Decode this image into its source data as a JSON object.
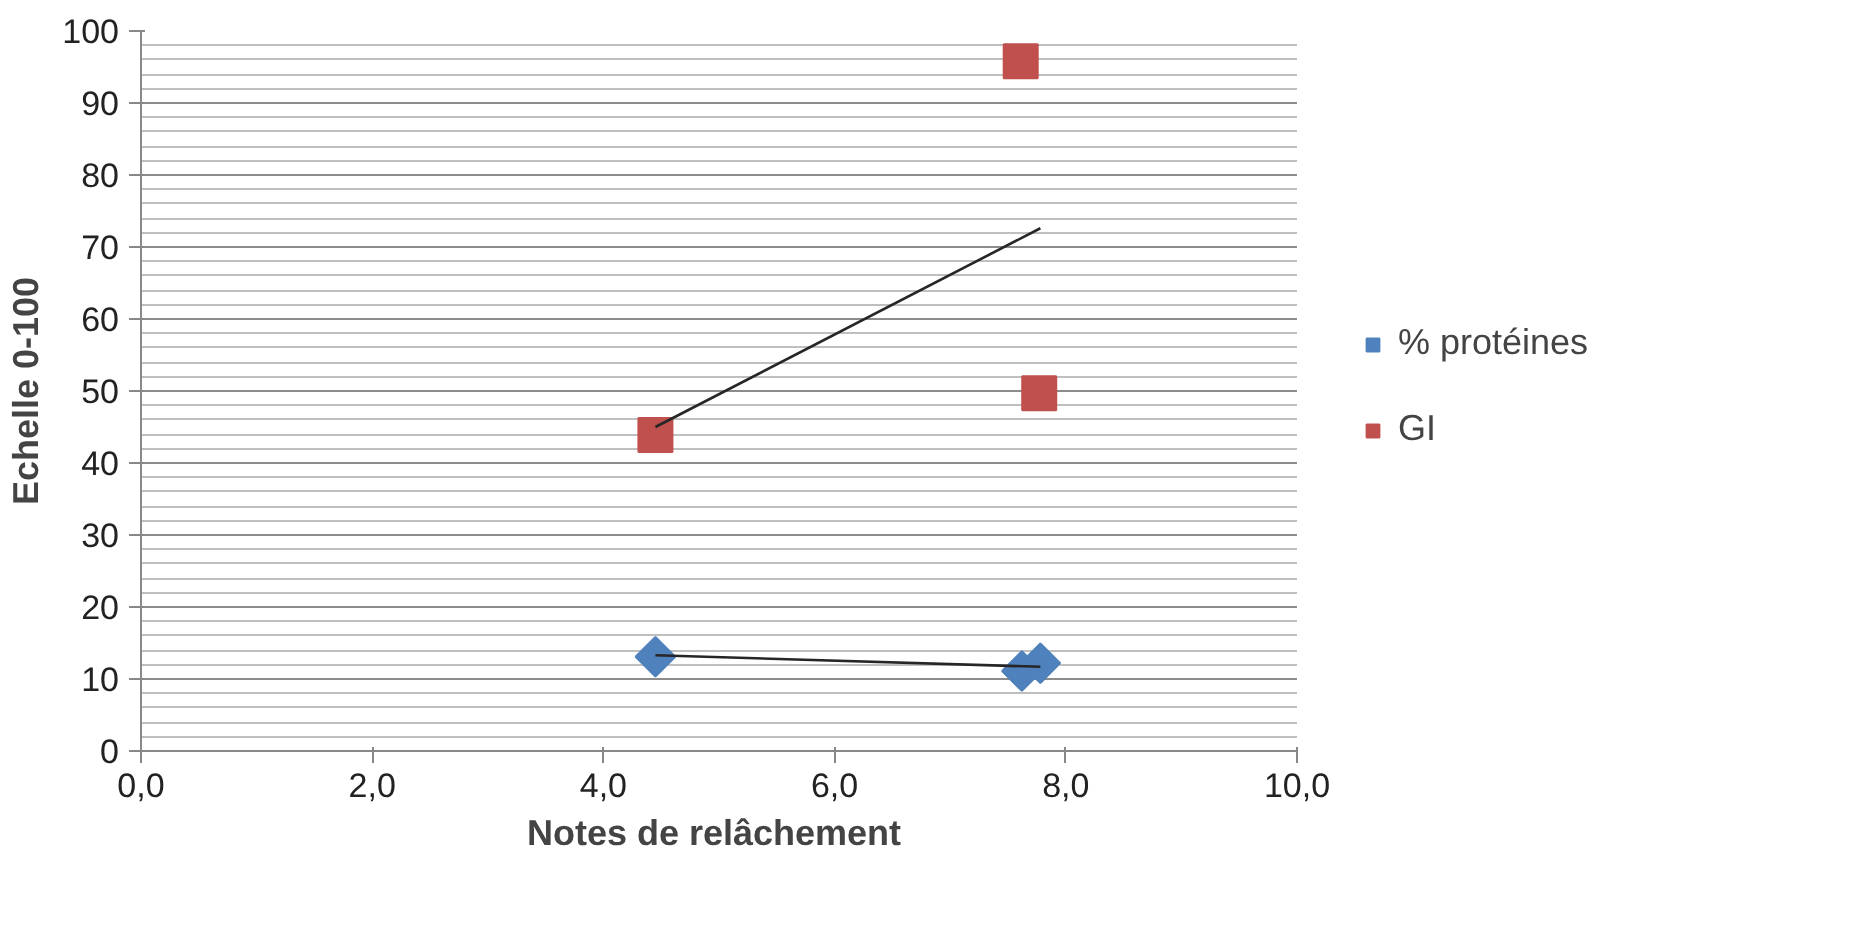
{
  "chart_data": {
    "type": "scatter",
    "xlabel": "Notes  de relâchement",
    "ylabel": "Echelle 0-100",
    "xlim": [
      0,
      10
    ],
    "xticks": [
      {
        "value": 0,
        "label": "0,0"
      },
      {
        "value": 2,
        "label": "2,0"
      },
      {
        "value": 4,
        "label": "4,0"
      },
      {
        "value": 6,
        "label": "6,0"
      },
      {
        "value": 8,
        "label": "8,0"
      },
      {
        "value": 10,
        "label": "10,0"
      }
    ],
    "ylim": [
      0,
      100
    ],
    "yticks": [
      0,
      10,
      20,
      30,
      40,
      50,
      60,
      70,
      80,
      90,
      100
    ],
    "grid": "y",
    "legend": "right",
    "series": [
      {
        "name": "% protéines",
        "color": "#4f81bd",
        "marker": "diamond",
        "x": [
          4.45,
          7.62,
          7.78
        ],
        "values": [
          13.1,
          11.1,
          12.2
        ]
      },
      {
        "name": "GI",
        "color": "#c0504d",
        "marker": "square",
        "x": [
          4.45,
          7.61,
          7.77
        ],
        "values": [
          43.9,
          95.8,
          49.7
        ]
      },
      {
        "type": "line",
        "color": "#262626",
        "x": [
          4.45,
          7.78
        ],
        "values": [
          45.0,
          72.6
        ]
      },
      {
        "type": "line",
        "color": "#262626",
        "x": [
          4.45,
          7.78
        ],
        "values": [
          13.3,
          11.7
        ]
      }
    ]
  }
}
